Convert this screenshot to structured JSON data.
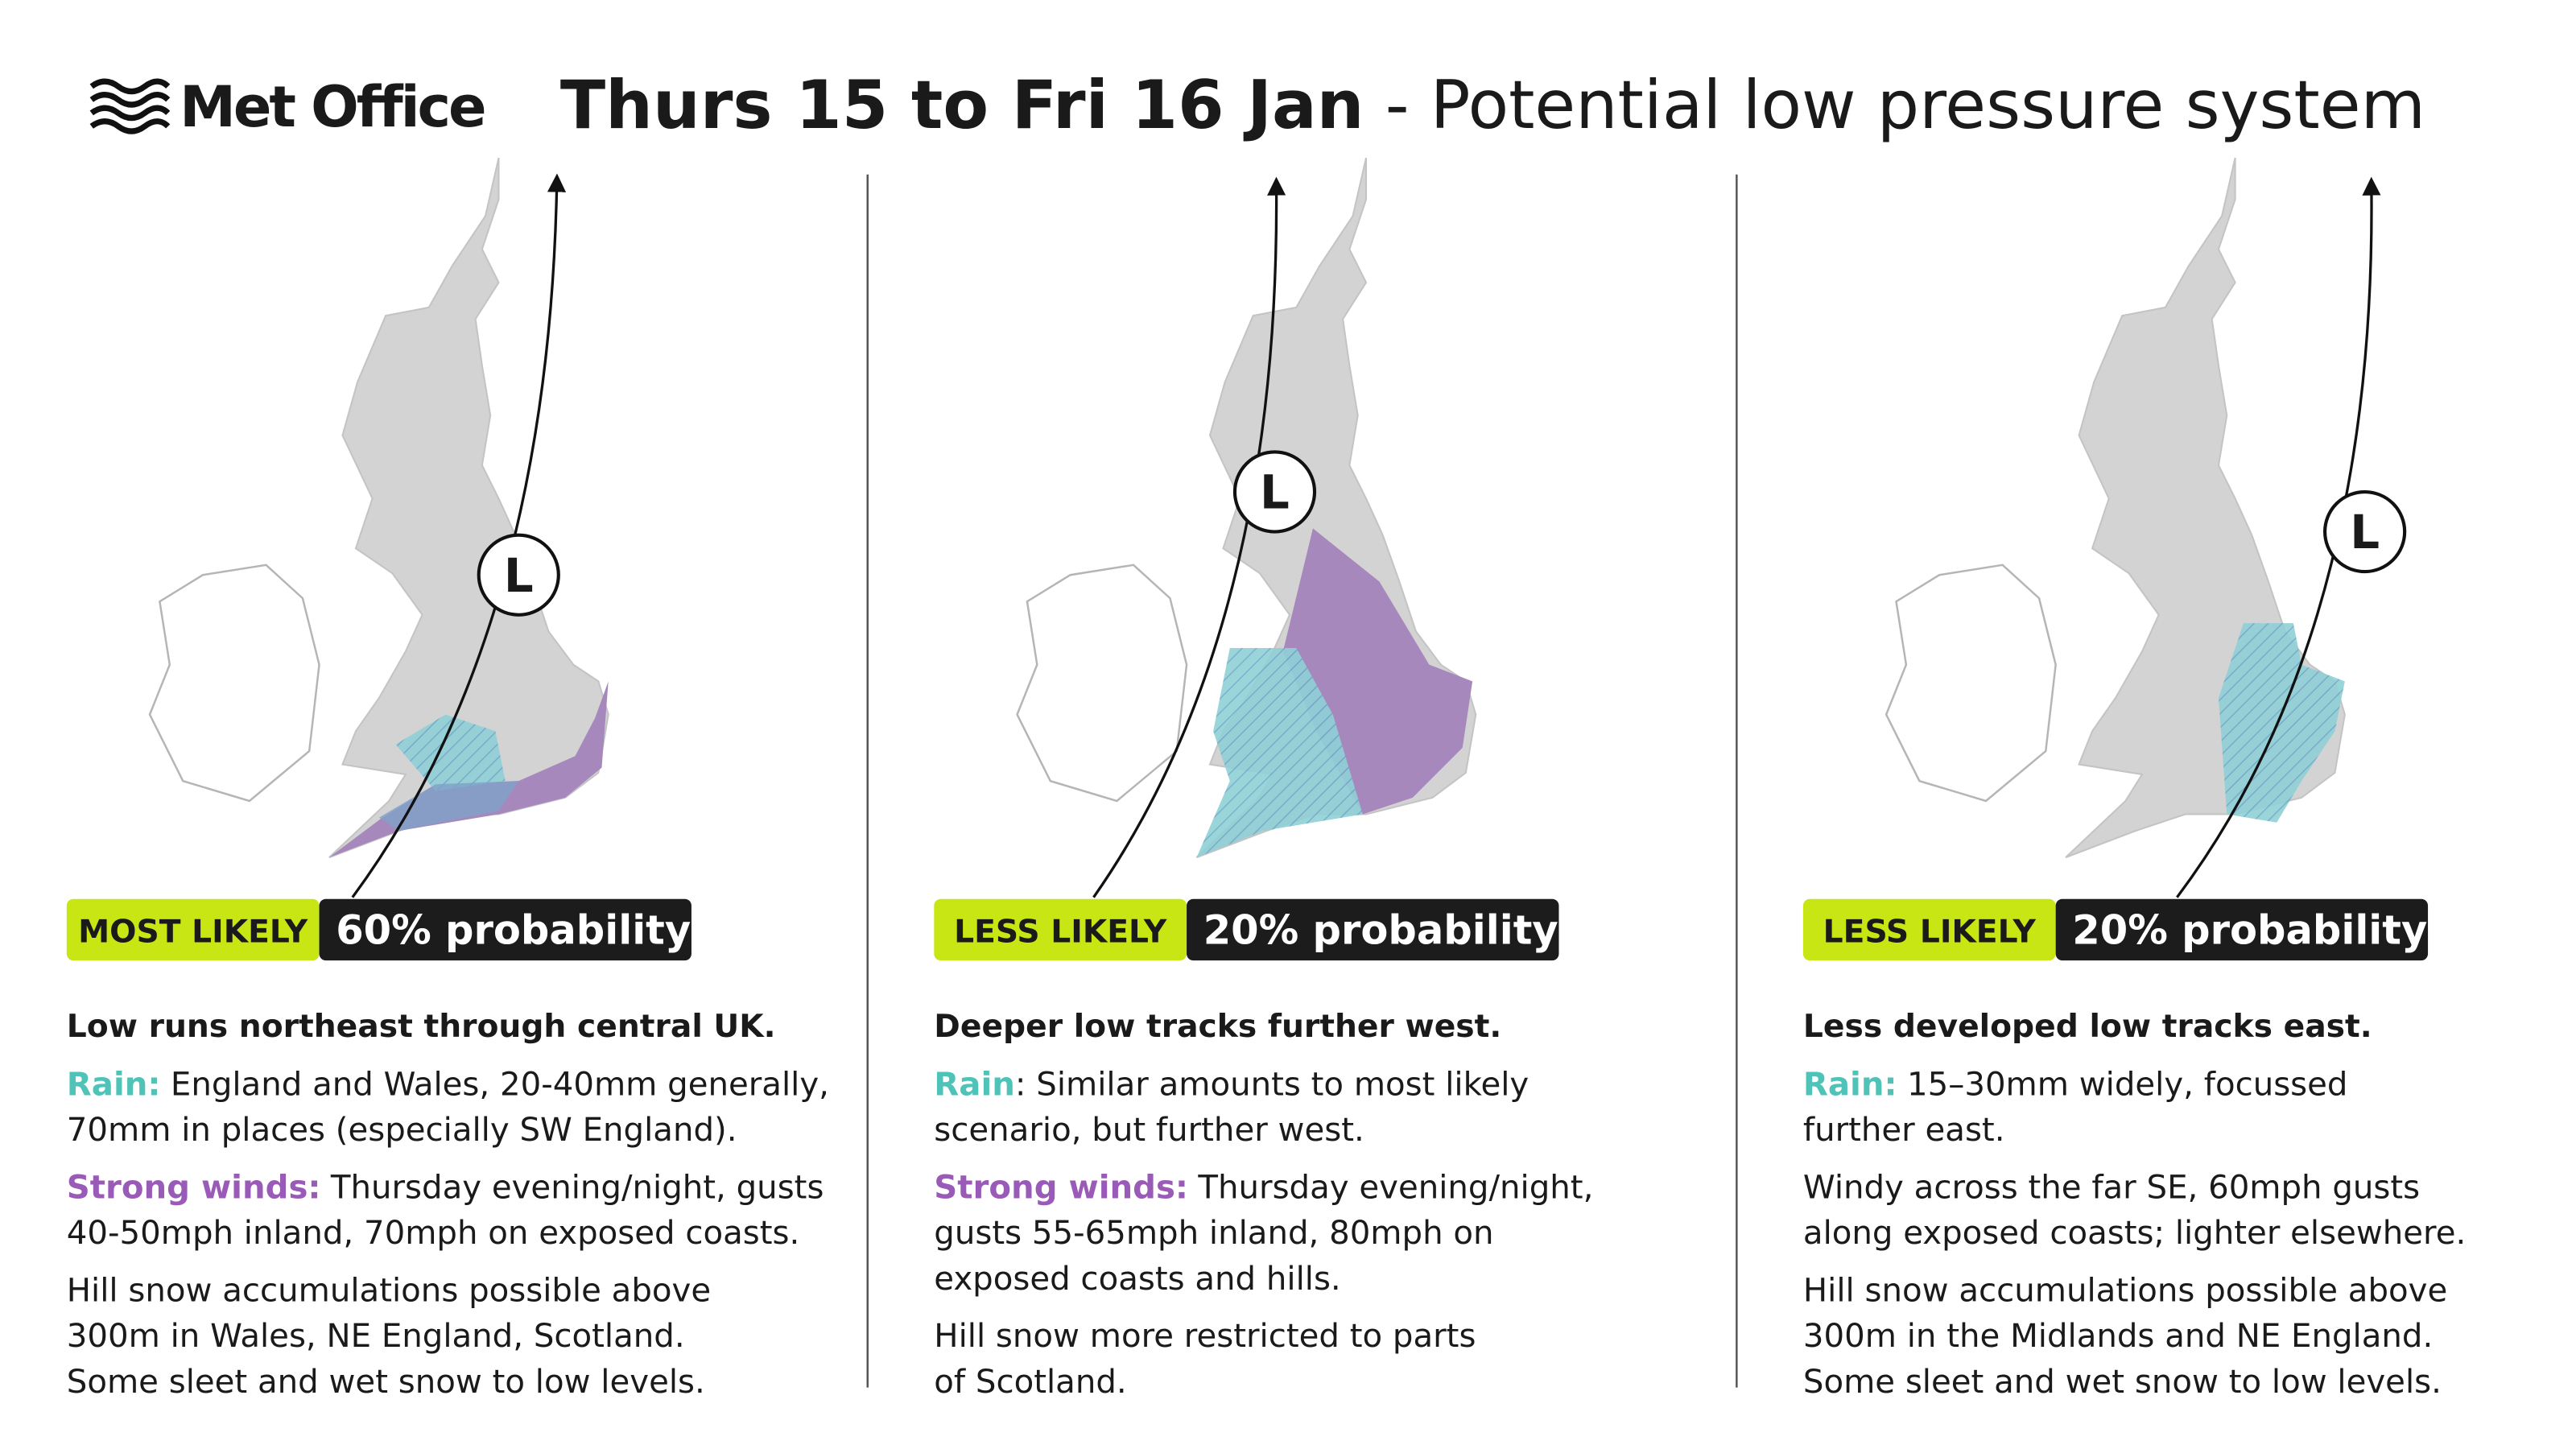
{
  "header": {
    "logo": "Met Office",
    "title_bold": "Thurs 15 to Fri 16 Jan",
    "title_rest": " - Potential low pressure system"
  },
  "panels": [
    {
      "low_label": "L",
      "likelihood": "MOST LIKELY",
      "probability": "60% probability",
      "headline": "Low runs northeast through central UK.",
      "paragraphs": [
        {
          "label": "Rain:",
          "kind": "rain",
          "lines": [
            "England and Wales, 20-40mm generally,",
            "70mm in places (especially SW England)."
          ]
        },
        {
          "label": "Strong winds:",
          "kind": "wind",
          "lines": [
            "Thursday evening/night, gusts",
            "40-50mph inland, 70mph on exposed coasts."
          ]
        },
        {
          "lines": [
            "Hill snow accumulations possible above",
            "300m in Wales, NE England, Scotland.",
            "Some sleet and wet snow to low levels."
          ]
        }
      ]
    },
    {
      "low_label": "L",
      "likelihood": "LESS LIKELY",
      "probability": "20% probability",
      "headline": "Deeper low tracks further west.",
      "paragraphs": [
        {
          "label": "Rain",
          "kind": "rain",
          "lines": [
            ": Similar amounts to most likely",
            "scenario, but further west."
          ]
        },
        {
          "label": "Strong winds:",
          "kind": "wind",
          "lines": [
            "Thursday evening/night,",
            "gusts 55-65mph inland, 80mph on",
            "exposed coasts and hills."
          ]
        },
        {
          "lines": [
            "Hill snow more restricted to parts",
            "of Scotland."
          ]
        }
      ]
    },
    {
      "low_label": "L",
      "likelihood": "LESS LIKELY",
      "probability": "20% probability",
      "headline": "Less developed low tracks east.",
      "paragraphs": [
        {
          "label": "Rain:",
          "kind": "rain",
          "lines": [
            "15–30mm widely, focussed",
            "further east."
          ]
        },
        {
          "lines": [
            "Windy across the far SE, 60mph gusts",
            "along exposed coasts; lighter elsewhere."
          ]
        },
        {
          "lines": [
            "Hill snow accumulations possible above",
            "300m in the Midlands and NE England.",
            "Some sleet and wet snow to low levels."
          ]
        }
      ]
    }
  ]
}
